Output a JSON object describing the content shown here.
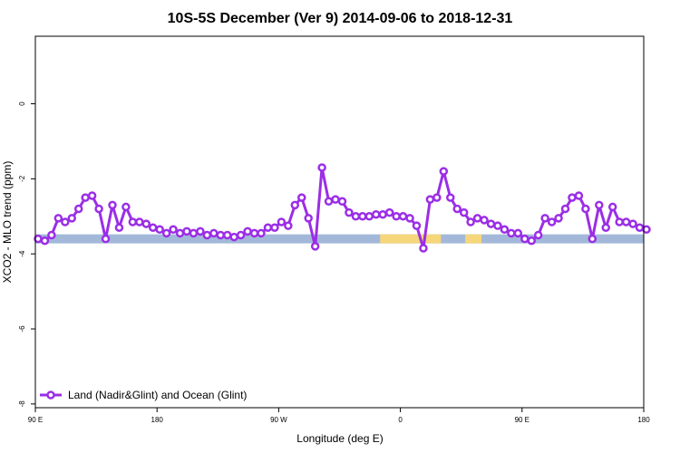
{
  "chart_data": {
    "type": "line",
    "title": "10S-5S December (Ver 9)   2014-09-06 to 2018-12-31",
    "xlabel": "Longitude (deg E)",
    "ylabel": "XCO2 - MLO trend (ppm)",
    "xlim": [
      90,
      540
    ],
    "ylim": [
      -8.1,
      1.8
    ],
    "x_ticks": [
      {
        "value": 90,
        "label": "90 E"
      },
      {
        "value": 180,
        "label": "180"
      },
      {
        "value": 270,
        "label": "90 W"
      },
      {
        "value": 360,
        "label": "0"
      },
      {
        "value": 450,
        "label": "90 E"
      },
      {
        "value": 540,
        "label": "180"
      }
    ],
    "y_ticks": [
      {
        "value": 0,
        "label": "0"
      },
      {
        "value": -2,
        "label": "-2"
      },
      {
        "value": -4,
        "label": "-4"
      },
      {
        "value": -6,
        "label": "-6"
      },
      {
        "value": -8,
        "label": "-8"
      }
    ],
    "grid": false,
    "legend_position": "bottom-left",
    "surface_band": {
      "y_center": -3.6,
      "ocean_color": "#a3b8d9",
      "land_color": "#f5d67a",
      "land_segments": [
        [
          345,
          390
        ],
        [
          408,
          420
        ]
      ]
    },
    "series": [
      {
        "name": "Land (Nadir&Glint) and Ocean (Glint)",
        "color": "#9b2ee6",
        "x": [
          92,
          97,
          102,
          107,
          112,
          117,
          122,
          127,
          132,
          137,
          142,
          147,
          152,
          157,
          162,
          167,
          172,
          177,
          182,
          187,
          192,
          197,
          202,
          207,
          212,
          217,
          222,
          227,
          232,
          237,
          242,
          247,
          252,
          257,
          262,
          267,
          272,
          277,
          282,
          287,
          292,
          297,
          302,
          307,
          312,
          317,
          322,
          327,
          332,
          337,
          342,
          347,
          352,
          357,
          362,
          367,
          372,
          377,
          382,
          387,
          392,
          397,
          402,
          407,
          412,
          417,
          422,
          427,
          432,
          437,
          442,
          447,
          452,
          457,
          462,
          467,
          472,
          477,
          482,
          487,
          492,
          497,
          502,
          507,
          512,
          517,
          522,
          527,
          532,
          537,
          542
        ],
        "y": [
          -3.6,
          -3.65,
          -3.5,
          -3.05,
          -3.15,
          -3.05,
          -2.8,
          -2.5,
          -2.45,
          -2.8,
          -3.6,
          -2.7,
          -3.3,
          -2.75,
          -3.15,
          -3.15,
          -3.2,
          -3.3,
          -3.35,
          -3.45,
          -3.35,
          -3.45,
          -3.4,
          -3.45,
          -3.4,
          -3.5,
          -3.45,
          -3.5,
          -3.5,
          -3.55,
          -3.5,
          -3.4,
          -3.45,
          -3.45,
          -3.3,
          -3.3,
          -3.15,
          -3.25,
          -2.7,
          -2.5,
          -3.05,
          -3.8,
          -1.7,
          -2.6,
          -2.55,
          -2.6,
          -2.9,
          -3.0,
          -3.0,
          -3.0,
          -2.95,
          -2.95,
          -2.9,
          -3.0,
          -3.0,
          -3.05,
          -3.25,
          -3.85,
          -2.55,
          -2.5,
          -1.8,
          -2.5,
          -2.8,
          -2.9,
          -3.15,
          -3.05,
          -3.1,
          -3.2,
          -3.25,
          -3.35,
          -3.45,
          -3.45,
          -3.6,
          -3.65,
          -3.5,
          -3.05,
          -3.15,
          -3.05,
          -2.8,
          -2.5,
          -2.45,
          -2.8,
          -3.6,
          -2.7,
          -3.3,
          -2.75,
          -3.15,
          -3.15,
          -3.2,
          -3.3,
          -3.35
        ]
      }
    ]
  }
}
